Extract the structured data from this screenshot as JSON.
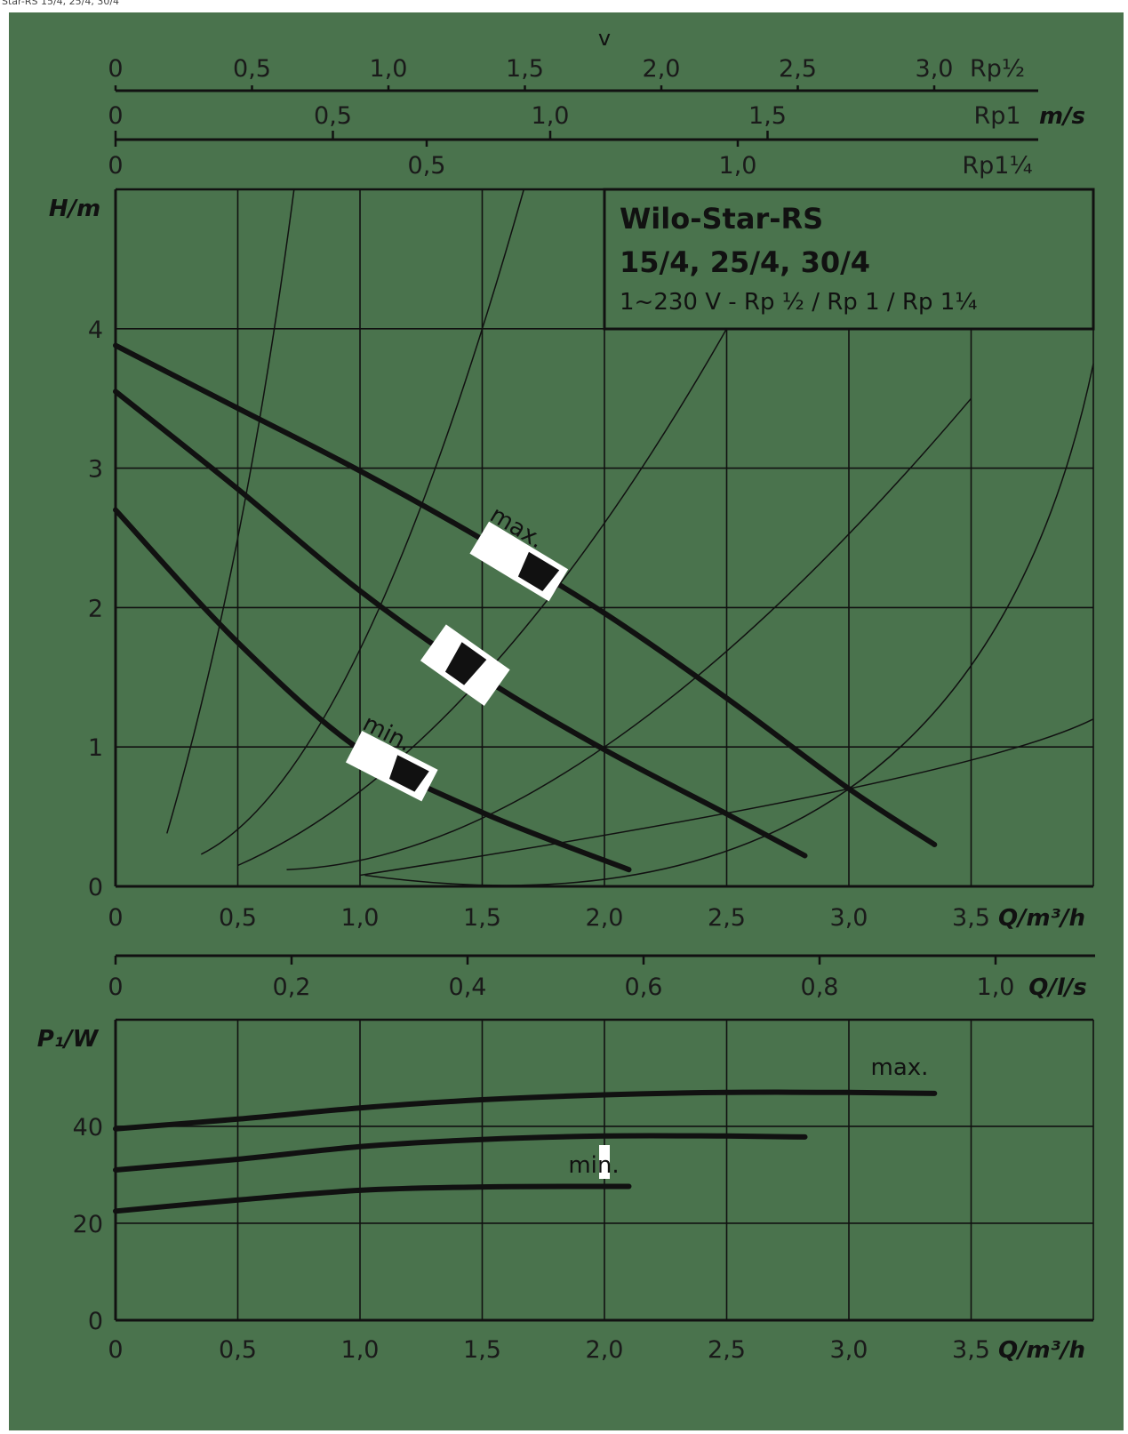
{
  "caption": "Star-RS 15/4, 25/4, 30/4",
  "colors": {
    "background": "#4a734d",
    "lines": "#111111",
    "tags": "#ffffff"
  },
  "velocity": {
    "label": "v",
    "unit_label": "m/s",
    "scales": [
      {
        "name": "Rp½",
        "ticks": [
          "0",
          "0,5",
          "1,0",
          "1,5",
          "2,0",
          "2,5",
          "3,0"
        ],
        "values": [
          0,
          0.5,
          1.0,
          1.5,
          2.0,
          2.5,
          3.0
        ]
      },
      {
        "name": "Rp1",
        "ticks": [
          "0",
          "0,5",
          "1,0",
          "1,5"
        ],
        "values": [
          0,
          0.5,
          1.0,
          1.5
        ]
      },
      {
        "name": "Rp1¼",
        "ticks": [
          "0",
          "0,5",
          "1,0"
        ],
        "values": [
          0,
          0.5,
          1.0
        ]
      }
    ]
  },
  "legend_box": {
    "line1": "Wilo-Star-RS",
    "line2": "15/4, 25/4, 30/4",
    "line3": "1~230 V - Rp ½ / Rp 1 / Rp 1¼"
  },
  "flow_ls_axis": {
    "label": "Q/l/s",
    "ticks": [
      "0",
      "0,2",
      "0,4",
      "0,6",
      "0,8",
      "1,0"
    ],
    "values": [
      0,
      0.2,
      0.4,
      0.6,
      0.8,
      1.0
    ]
  },
  "chart_data": [
    {
      "type": "line",
      "xlabel": "Q/m³/h",
      "ylabel": "H/m",
      "xlim": [
        0,
        4.0
      ],
      "ylim": [
        0,
        5.0
      ],
      "x_ticks": [
        "0",
        "0,5",
        "1,0",
        "1,5",
        "2,0",
        "2,5",
        "3,0",
        "3,5"
      ],
      "x_tick_values": [
        0,
        0.5,
        1.0,
        1.5,
        2.0,
        2.5,
        3.0,
        3.5
      ],
      "y_ticks": [
        "0",
        "1",
        "2",
        "3",
        "4"
      ],
      "y_tick_values": [
        0,
        1,
        2,
        3,
        4
      ],
      "grid": true,
      "series": [
        {
          "name": "max.",
          "x": [
            0,
            0.5,
            1.0,
            1.5,
            2.0,
            2.5,
            3.0,
            3.35
          ],
          "y": [
            3.88,
            3.43,
            2.98,
            2.49,
            1.96,
            1.35,
            0.7,
            0.3
          ]
        },
        {
          "name": "",
          "x": [
            0,
            0.5,
            1.0,
            1.5,
            2.0,
            2.5,
            2.82
          ],
          "y": [
            3.55,
            2.85,
            2.12,
            1.5,
            0.98,
            0.52,
            0.22
          ]
        },
        {
          "name": "min.",
          "x": [
            0,
            0.5,
            1.0,
            1.5,
            2.1
          ],
          "y": [
            2.7,
            1.75,
            0.98,
            0.53,
            0.12
          ]
        }
      ],
      "system_curves": [
        {
          "x": [
            0.21,
            0.5,
            0.73
          ],
          "y": [
            0.38,
            2.5,
            5.0
          ]
        },
        {
          "x": [
            0.35,
            1.0,
            1.67
          ],
          "y": [
            0.23,
            1.7,
            5.0
          ]
        },
        {
          "x": [
            0.5,
            1.5,
            2.5
          ],
          "y": [
            0.15,
            1.5,
            4.0
          ]
        },
        {
          "x": [
            0.7,
            2.0,
            3.5
          ],
          "y": [
            0.12,
            1.0,
            3.5
          ]
        },
        {
          "x": [
            1.02,
            3.0,
            4.0
          ],
          "y": [
            0.08,
            0.7,
            3.75
          ]
        },
        {
          "x": [
            1.0,
            3.0,
            4.0
          ],
          "y": [
            0.08,
            0.7,
            1.2
          ]
        }
      ]
    },
    {
      "type": "line",
      "xlabel": "Q/m³/h",
      "ylabel": "P₁/W",
      "xlim": [
        0,
        4.0
      ],
      "ylim": [
        0,
        62
      ],
      "x_ticks": [
        "0",
        "0,5",
        "1,0",
        "1,5",
        "2,0",
        "2,5",
        "3,0",
        "3,5"
      ],
      "x_tick_values": [
        0,
        0.5,
        1.0,
        1.5,
        2.0,
        2.5,
        3.0,
        3.5
      ],
      "y_ticks": [
        "0",
        "20",
        "40"
      ],
      "y_tick_values": [
        0,
        20,
        40
      ],
      "grid": true,
      "series": [
        {
          "name": "max.",
          "x": [
            0,
            0.5,
            1.0,
            1.5,
            2.0,
            2.5,
            3.0,
            3.35
          ],
          "y": [
            39.5,
            41.5,
            43.8,
            45.5,
            46.5,
            47.0,
            47.0,
            46.8
          ]
        },
        {
          "name": "",
          "x": [
            0,
            0.5,
            1.0,
            1.5,
            2.0,
            2.5,
            2.82
          ],
          "y": [
            31.0,
            33.2,
            35.8,
            37.3,
            38.0,
            38.0,
            37.8
          ]
        },
        {
          "name": "min.",
          "x": [
            0,
            0.5,
            1.0,
            1.5,
            2.0,
            2.1
          ],
          "y": [
            22.5,
            24.8,
            26.8,
            27.5,
            27.6,
            27.6
          ]
        }
      ]
    }
  ]
}
